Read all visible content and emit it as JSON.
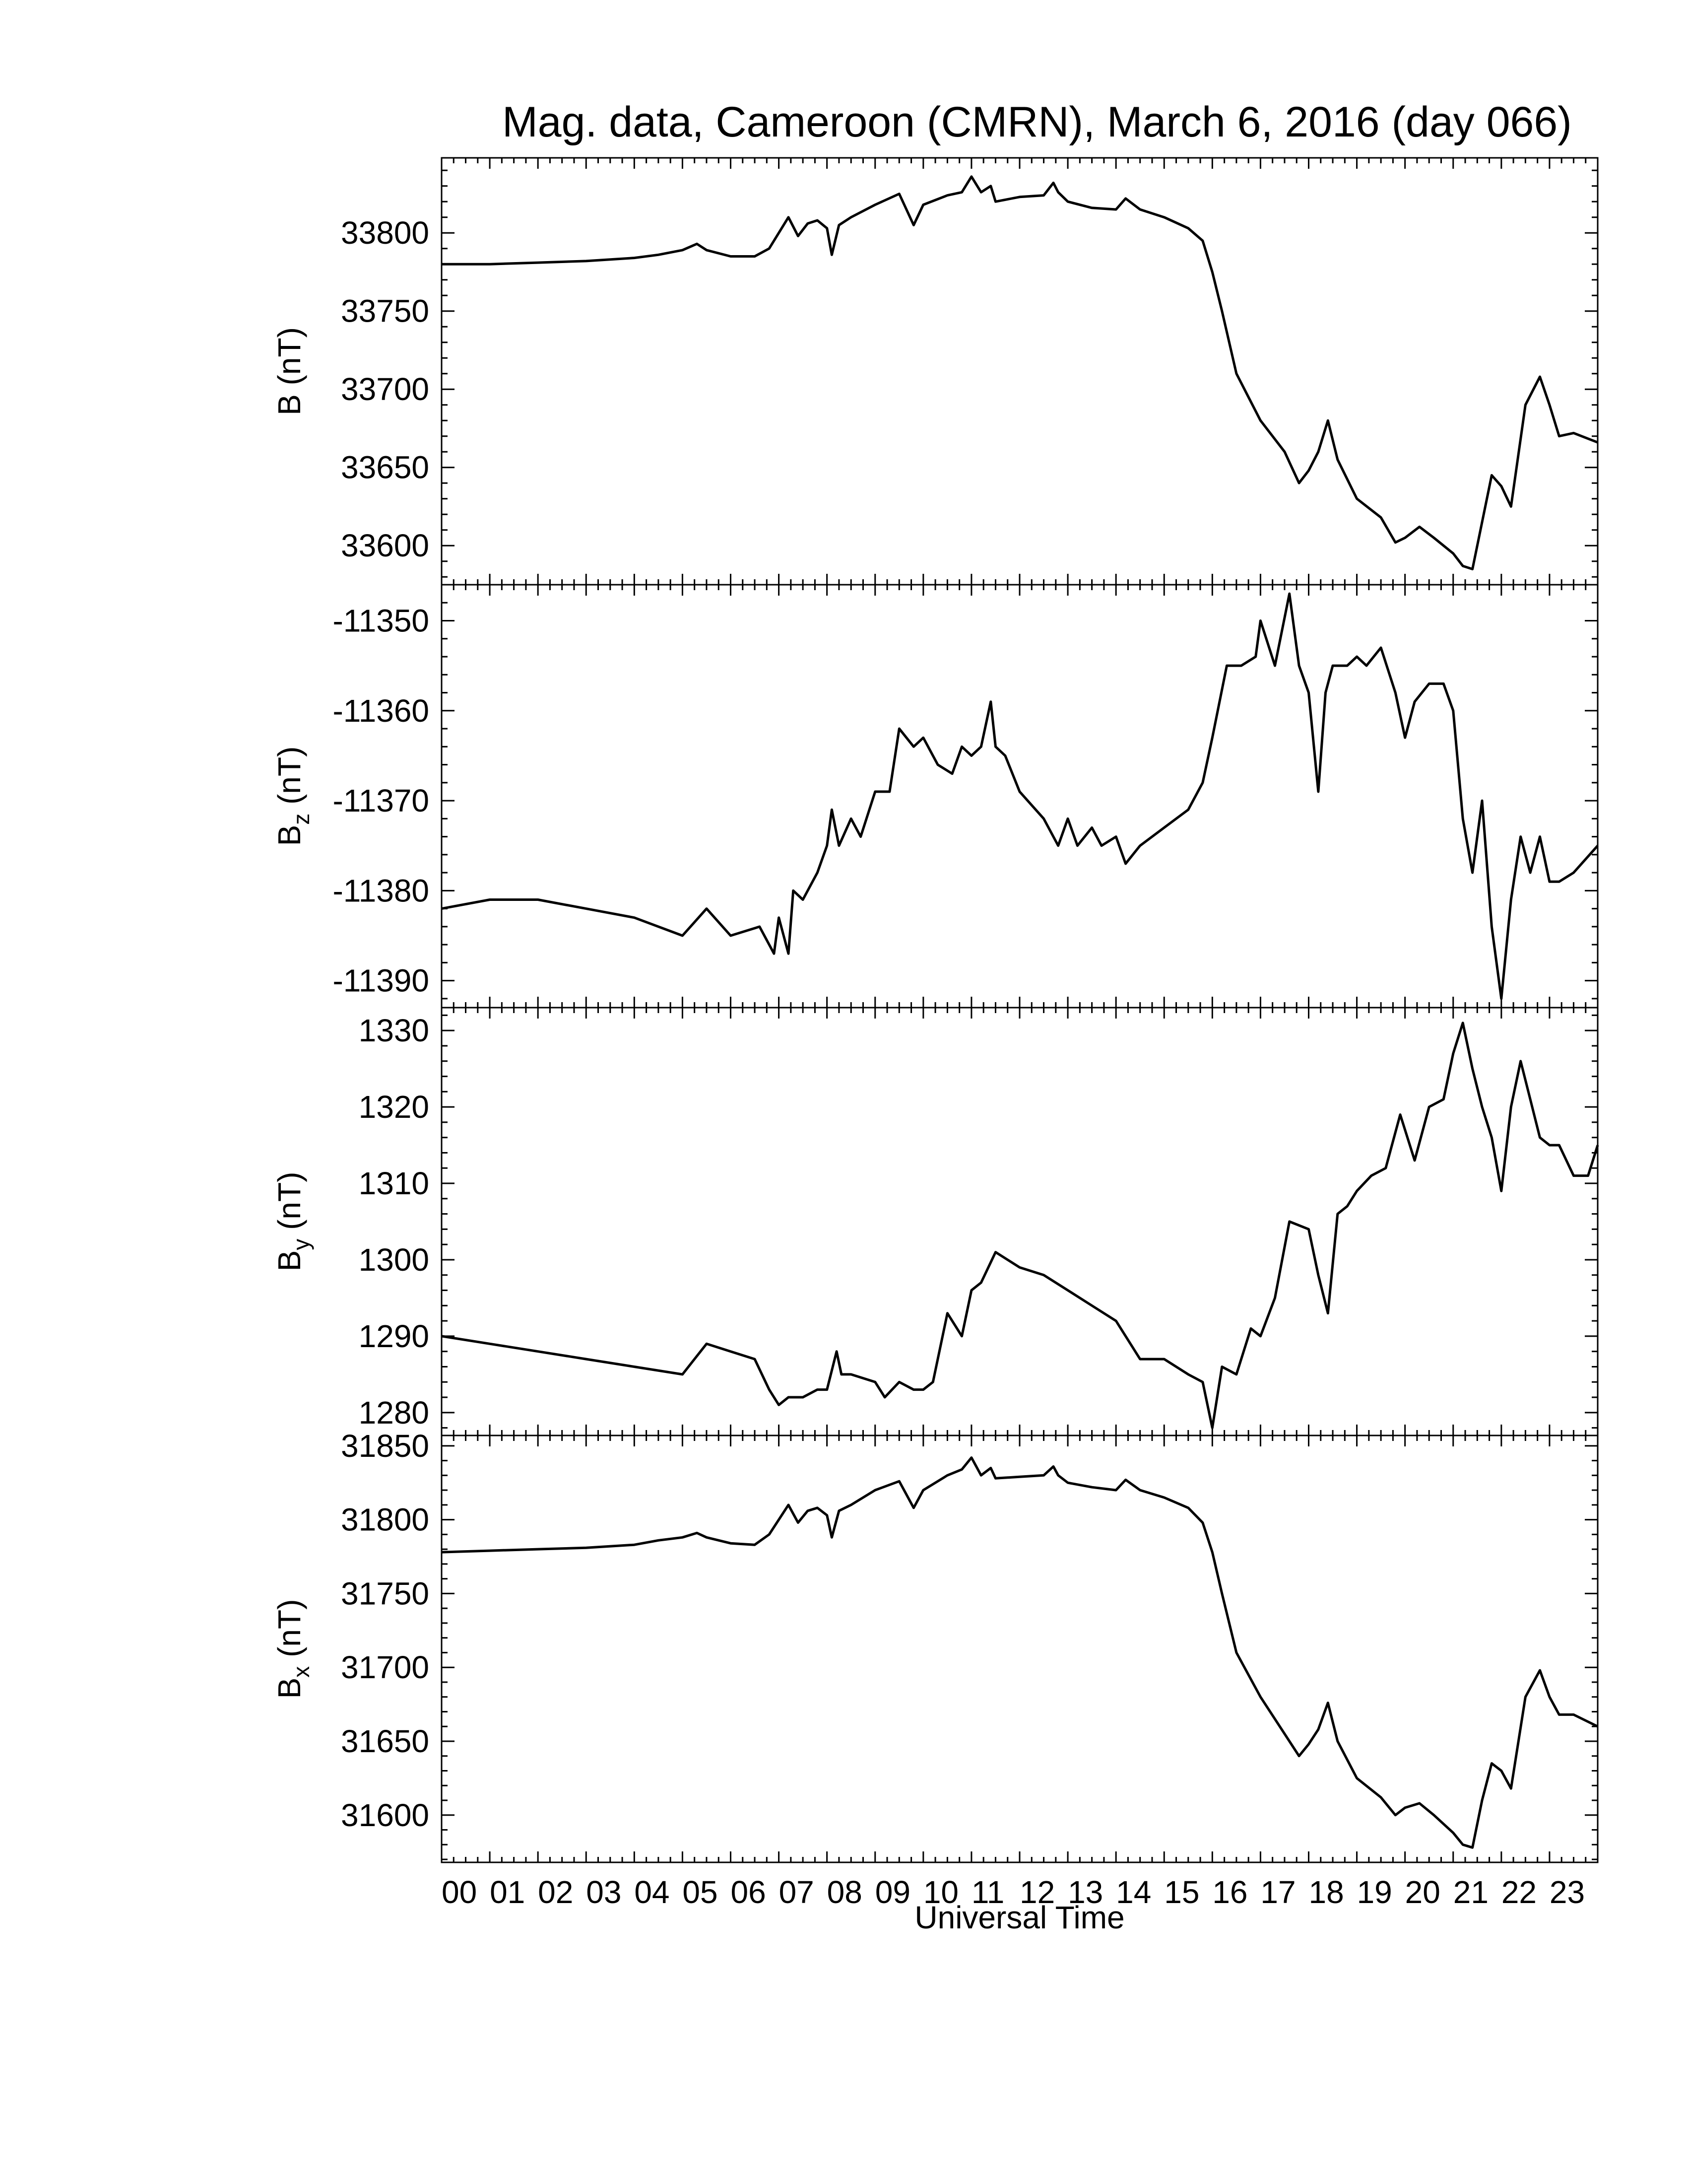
{
  "chart_data": {
    "type": "line",
    "title": "Mag. data, Cameroon (CMRN), March 6, 2016 (day 066)",
    "xlabel": "Universal Time",
    "x_tick_labels": [
      "00",
      "01",
      "02",
      "03",
      "04",
      "05",
      "06",
      "07",
      "08",
      "09",
      "10",
      "11",
      "12",
      "13",
      "14",
      "15",
      "16",
      "17",
      "18",
      "19",
      "20",
      "21",
      "22",
      "23"
    ],
    "xlim": [
      0,
      24
    ],
    "panels": [
      {
        "ylabel": "B (nT)",
        "ylabel_main": "B",
        "ylabel_sub": "",
        "ylabel_unit": "(nT)",
        "ylim": [
          33575,
          33848
        ],
        "yticks": [
          33600,
          33650,
          33700,
          33750,
          33800
        ],
        "series": [
          {
            "x": [
              0,
              1,
              2,
              3,
              4,
              4.5,
              5,
              5.3,
              5.5,
              6,
              6.5,
              6.8,
              7,
              7.2,
              7.4,
              7.6,
              7.8,
              8,
              8.1,
              8.25,
              8.5,
              9,
              9.5,
              9.8,
              10,
              10.5,
              10.8,
              11,
              11.2,
              11.4,
              11.5,
              12,
              12.5,
              12.7,
              12.8,
              13,
              13.5,
              14,
              14.2,
              14.5,
              15,
              15.5,
              15.8,
              16,
              16.2,
              16.5,
              17,
              17.5,
              17.8,
              18,
              18.2,
              18.4,
              18.6,
              19,
              19.5,
              19.8,
              20,
              20.3,
              20.6,
              21,
              21.2,
              21.4,
              21.6,
              21.8,
              22,
              22.2,
              22.5,
              22.8,
              23,
              23.2,
              23.5,
              24
            ],
            "y": [
              33780,
              33780,
              33781,
              33782,
              33784,
              33786,
              33789,
              33793,
              33789,
              33785,
              33785,
              33790,
              33800,
              33810,
              33798,
              33806,
              33808,
              33803,
              33786,
              33805,
              33810,
              33818,
              33825,
              33805,
              33818,
              33824,
              33826,
              33836,
              33826,
              33830,
              33820,
              33823,
              33824,
              33832,
              33826,
              33820,
              33816,
              33815,
              33822,
              33815,
              33810,
              33803,
              33795,
              33775,
              33750,
              33710,
              33680,
              33660,
              33640,
              33648,
              33660,
              33680,
              33655,
              33630,
              33618,
              33602,
              33605,
              33612,
              33605,
              33595,
              33587,
              33585,
              33615,
              33645,
              33638,
              33625,
              33690,
              33708,
              33690,
              33670,
              33672,
              33666
            ]
          }
        ]
      },
      {
        "ylabel": "Bz (nT)",
        "ylabel_main": "B",
        "ylabel_sub": "z",
        "ylabel_unit": "(nT)",
        "ylim": [
          -11393,
          -11346
        ],
        "yticks": [
          -11390,
          -11380,
          -11370,
          -11360,
          -11350
        ],
        "series": [
          {
            "x": [
              0,
              1,
              2,
              3,
              4,
              5,
              5.5,
              6,
              6.6,
              6.9,
              7,
              7.2,
              7.3,
              7.5,
              7.8,
              8,
              8.1,
              8.25,
              8.5,
              8.7,
              9,
              9.3,
              9.5,
              9.8,
              10,
              10.3,
              10.6,
              10.8,
              11,
              11.2,
              11.4,
              11.5,
              11.7,
              12,
              12.5,
              12.8,
              13,
              13.2,
              13.5,
              13.7,
              14,
              14.2,
              14.5,
              15,
              15.5,
              15.8,
              16,
              16.3,
              16.6,
              16.9,
              17,
              17.3,
              17.6,
              17.8,
              18,
              18.2,
              18.35,
              18.5,
              18.8,
              19,
              19.2,
              19.5,
              19.8,
              20,
              20.2,
              20.5,
              20.8,
              21,
              21.2,
              21.4,
              21.6,
              21.8,
              22,
              22.2,
              22.4,
              22.6,
              22.8,
              23,
              23.2,
              23.5,
              24
            ],
            "y": [
              -11382,
              -11381,
              -11381,
              -11382,
              -11383,
              -11385,
              -11382,
              -11385,
              -11384,
              -11387,
              -11383,
              -11387,
              -11380,
              -11381,
              -11378,
              -11375,
              -11371,
              -11375,
              -11372,
              -11374,
              -11369,
              -11369,
              -11362,
              -11364,
              -11363,
              -11366,
              -11367,
              -11364,
              -11365,
              -11364,
              -11359,
              -11364,
              -11365,
              -11369,
              -11372,
              -11375,
              -11372,
              -11375,
              -11373,
              -11375,
              -11374,
              -11377,
              -11375,
              -11373,
              -11371,
              -11368,
              -11363,
              -11355,
              -11355,
              -11354,
              -11350,
              -11355,
              -11347,
              -11355,
              -11358,
              -11369,
              -11358,
              -11355,
              -11355,
              -11354,
              -11355,
              -11353,
              -11358,
              -11363,
              -11359,
              -11357,
              -11357,
              -11360,
              -11372,
              -11378,
              -11370,
              -11384,
              -11392,
              -11381,
              -11374,
              -11378,
              -11374,
              -11379,
              -11379,
              -11378,
              -11375
            ]
          }
        ]
      },
      {
        "ylabel": "By (nT)",
        "ylabel_main": "B",
        "ylabel_sub": "y",
        "ylabel_unit": "(nT)",
        "ylim": [
          1277,
          1333
        ],
        "yticks": [
          1280,
          1290,
          1300,
          1310,
          1320,
          1330
        ],
        "series": [
          {
            "x": [
              0,
              1,
              2,
              3,
              4,
              5,
              5.5,
              6,
              6.5,
              6.8,
              7,
              7.2,
              7.5,
              7.8,
              8,
              8.2,
              8.3,
              8.5,
              9,
              9.2,
              9.5,
              9.8,
              10,
              10.2,
              10.5,
              10.8,
              11,
              11.2,
              11.5,
              12,
              12.5,
              13,
              13.5,
              14,
              14.5,
              15,
              15.5,
              15.8,
              16,
              16.2,
              16.5,
              16.8,
              17,
              17.3,
              17.6,
              18,
              18.2,
              18.4,
              18.6,
              18.8,
              19,
              19.3,
              19.6,
              19.9,
              20.2,
              20.5,
              20.8,
              21,
              21.2,
              21.4,
              21.6,
              21.8,
              22,
              22.2,
              22.4,
              22.6,
              22.8,
              23,
              23.2,
              23.5,
              23.8,
              24
            ],
            "y": [
              1290,
              1289,
              1288,
              1287,
              1286,
              1285,
              1289,
              1288,
              1287,
              1283,
              1281,
              1282,
              1282,
              1283,
              1283,
              1288,
              1285,
              1285,
              1284,
              1282,
              1284,
              1283,
              1283,
              1284,
              1293,
              1290,
              1296,
              1297,
              1301,
              1299,
              1298,
              1296,
              1294,
              1292,
              1287,
              1287,
              1285,
              1284,
              1278,
              1286,
              1285,
              1291,
              1290,
              1295,
              1305,
              1304,
              1298,
              1293,
              1306,
              1307,
              1309,
              1311,
              1312,
              1319,
              1313,
              1320,
              1321,
              1327,
              1331,
              1325,
              1320,
              1316,
              1309,
              1320,
              1326,
              1321,
              1316,
              1315,
              1315,
              1311,
              1311,
              1315
            ]
          }
        ]
      },
      {
        "ylabel": "Bx (nT)",
        "ylabel_main": "B",
        "ylabel_sub": "x",
        "ylabel_unit": "(nT)",
        "ylim": [
          31568,
          31857
        ],
        "yticks": [
          31600,
          31650,
          31700,
          31750,
          31800,
          31850
        ],
        "series": [
          {
            "x": [
              0,
              1,
              2,
              3,
              4,
              4.5,
              5,
              5.3,
              5.5,
              6,
              6.5,
              6.8,
              7,
              7.2,
              7.4,
              7.6,
              7.8,
              8,
              8.1,
              8.25,
              8.5,
              9,
              9.5,
              9.8,
              10,
              10.5,
              10.8,
              11,
              11.2,
              11.4,
              11.5,
              12,
              12.5,
              12.7,
              12.8,
              13,
              13.5,
              14,
              14.2,
              14.5,
              15,
              15.5,
              15.8,
              16,
              16.2,
              16.5,
              17,
              17.5,
              17.8,
              18,
              18.2,
              18.4,
              18.6,
              19,
              19.5,
              19.8,
              20,
              20.3,
              20.6,
              21,
              21.2,
              21.4,
              21.6,
              21.8,
              22,
              22.2,
              22.5,
              22.8,
              23,
              23.2,
              23.5,
              24
            ],
            "y": [
              31778,
              31779,
              31780,
              31781,
              31783,
              31786,
              31788,
              31791,
              31788,
              31784,
              31783,
              31790,
              31800,
              31810,
              31798,
              31806,
              31808,
              31803,
              31788,
              31806,
              31810,
              31820,
              31826,
              31808,
              31820,
              31830,
              31834,
              31842,
              31830,
              31835,
              31828,
              31829,
              31830,
              31836,
              31830,
              31825,
              31822,
              31820,
              31827,
              31820,
              31815,
              31808,
              31798,
              31778,
              31750,
              31710,
              31680,
              31655,
              31640,
              31648,
              31658,
              31676,
              31650,
              31625,
              31612,
              31600,
              31605,
              31608,
              31600,
              31588,
              31580,
              31578,
              31610,
              31635,
              31630,
              31618,
              31680,
              31698,
              31680,
              31668,
              31668,
              31660
            ]
          }
        ]
      }
    ]
  }
}
